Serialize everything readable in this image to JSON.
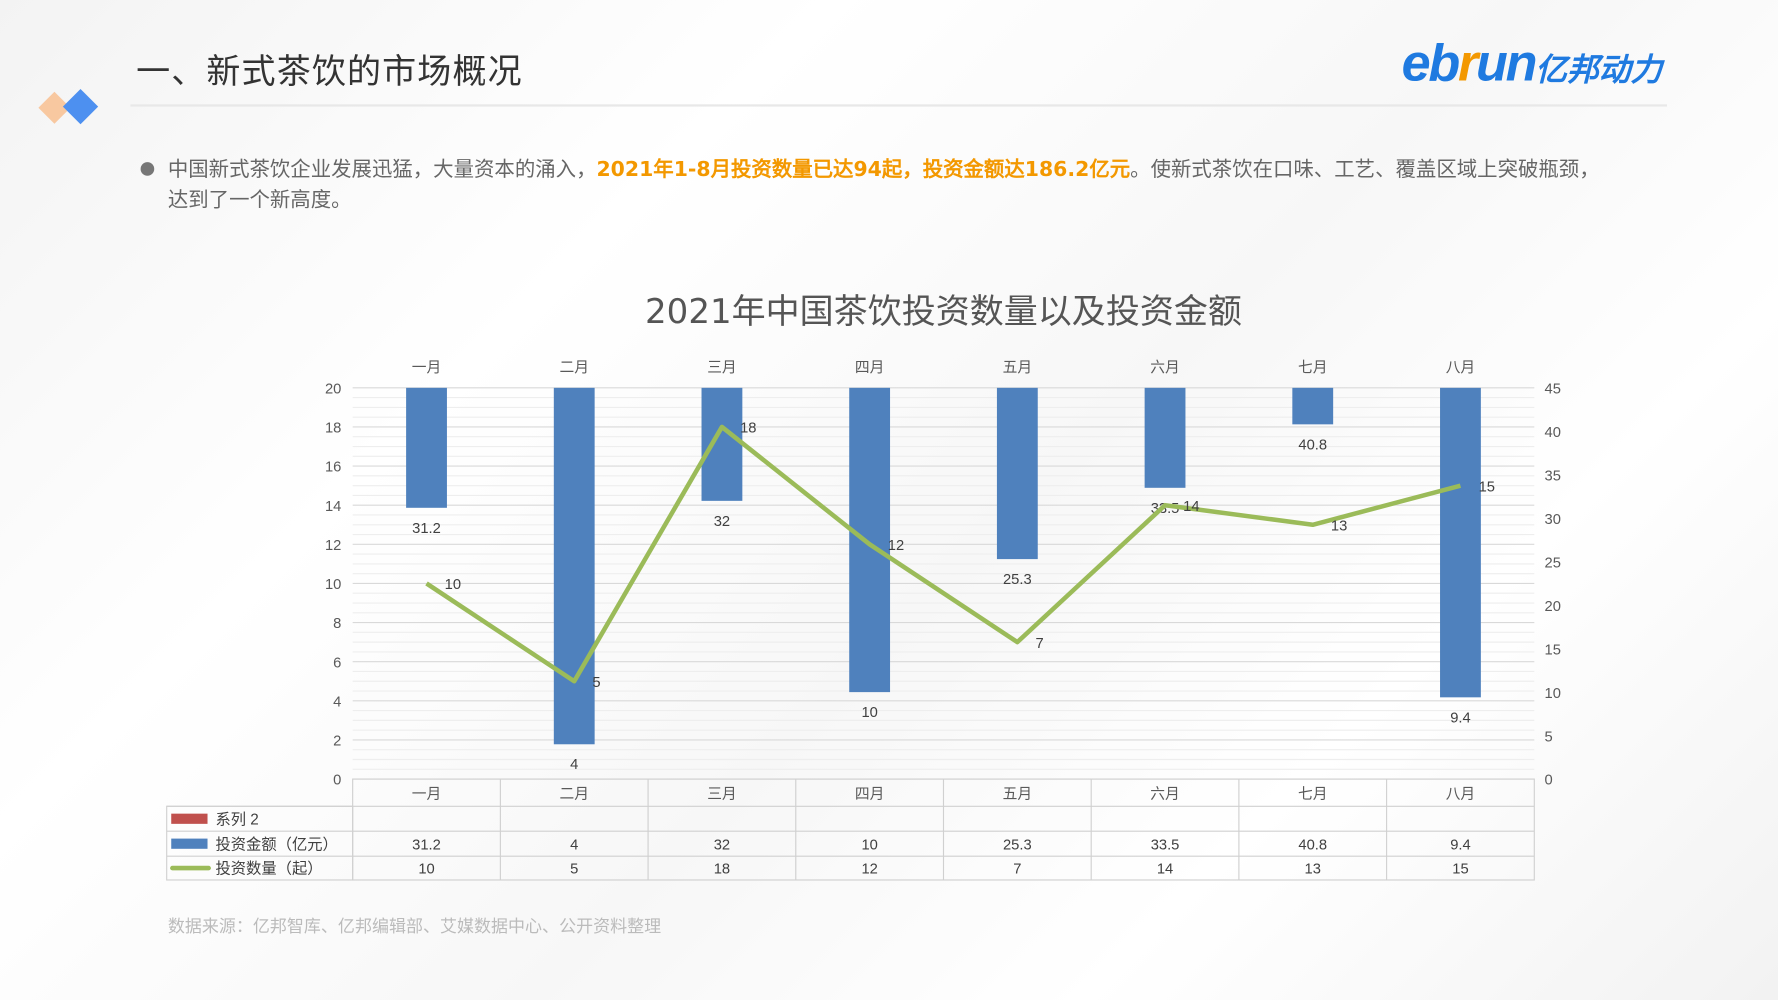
{
  "header": {
    "title": "一、新式茶饮的市场概况",
    "logo_text": "ebrun",
    "logo_cn": "亿邦动力"
  },
  "intro": {
    "text_before": "中国新式茶饮企业发展迅猛，大量资本的涌入，",
    "highlight": "2021年1-8月投资数量已达94起，投资金额达186.2亿元",
    "text_after": "。使新式茶饮在口味、工艺、覆盖区域上突破瓶颈，达到了一个新高度。"
  },
  "source": "数据来源：亿邦智库、亿邦编辑部、艾媒数据中心、公开资料整理",
  "chart_data": {
    "type": "bar+line",
    "title": "2021年中国茶饮投资数量以及投资金额",
    "categories": [
      "一月",
      "二月",
      "三月",
      "四月",
      "五月",
      "六月",
      "七月",
      "八月"
    ],
    "series": [
      {
        "name": "系列 2",
        "type": "bar",
        "color": "#c0504d",
        "values": [
          null,
          null,
          null,
          null,
          null,
          null,
          null,
          null
        ]
      },
      {
        "name": "投资金额（亿元）",
        "type": "bar",
        "axis": "right",
        "color": "#4f81bd",
        "values": [
          31.2,
          4,
          32,
          10,
          25.3,
          33.5,
          40.8,
          9.4
        ]
      },
      {
        "name": "投资数量（起）",
        "type": "line",
        "axis": "left",
        "color": "#9bbb59",
        "values": [
          10,
          5,
          18,
          12,
          7,
          14,
          13,
          15
        ]
      }
    ],
    "left_axis": {
      "min": 0,
      "max": 20,
      "step": 2
    },
    "right_axis": {
      "min": 0,
      "max": 45,
      "step": 5
    },
    "bars_hang_from_top": true,
    "grid": true,
    "legend": "data-table"
  }
}
